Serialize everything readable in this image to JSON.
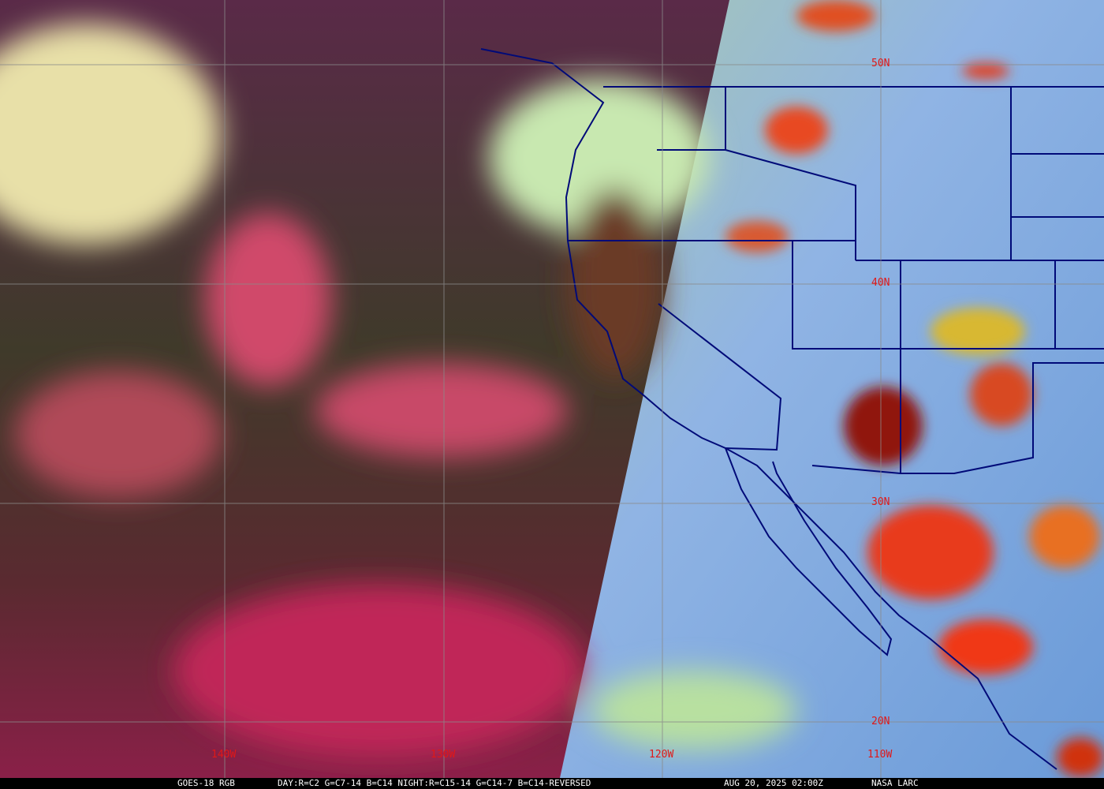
{
  "map": {
    "satellite": "GOES-18",
    "grid_labels": {
      "lon": [
        "140W",
        "130W",
        "120W",
        "110W"
      ],
      "lat": [
        "50N",
        "40N",
        "30N",
        "20N"
      ]
    },
    "colors": {
      "grid": "#8a8a8a",
      "borders": "#000a78",
      "labels": "#e01818",
      "night_side": "#4a2a38",
      "day_side": "#8fb8e0",
      "convection": "#e83a1a"
    }
  },
  "caption": {
    "product": "GOES-18 RGB",
    "recipe": "DAY:R=C2 G=C7-14 B=C14 NIGHT:R=C15-14 G=C14-7 B=C14-REVERSED",
    "datetime": "AUG 20, 2025 02:00Z",
    "source": "NASA LARC"
  }
}
